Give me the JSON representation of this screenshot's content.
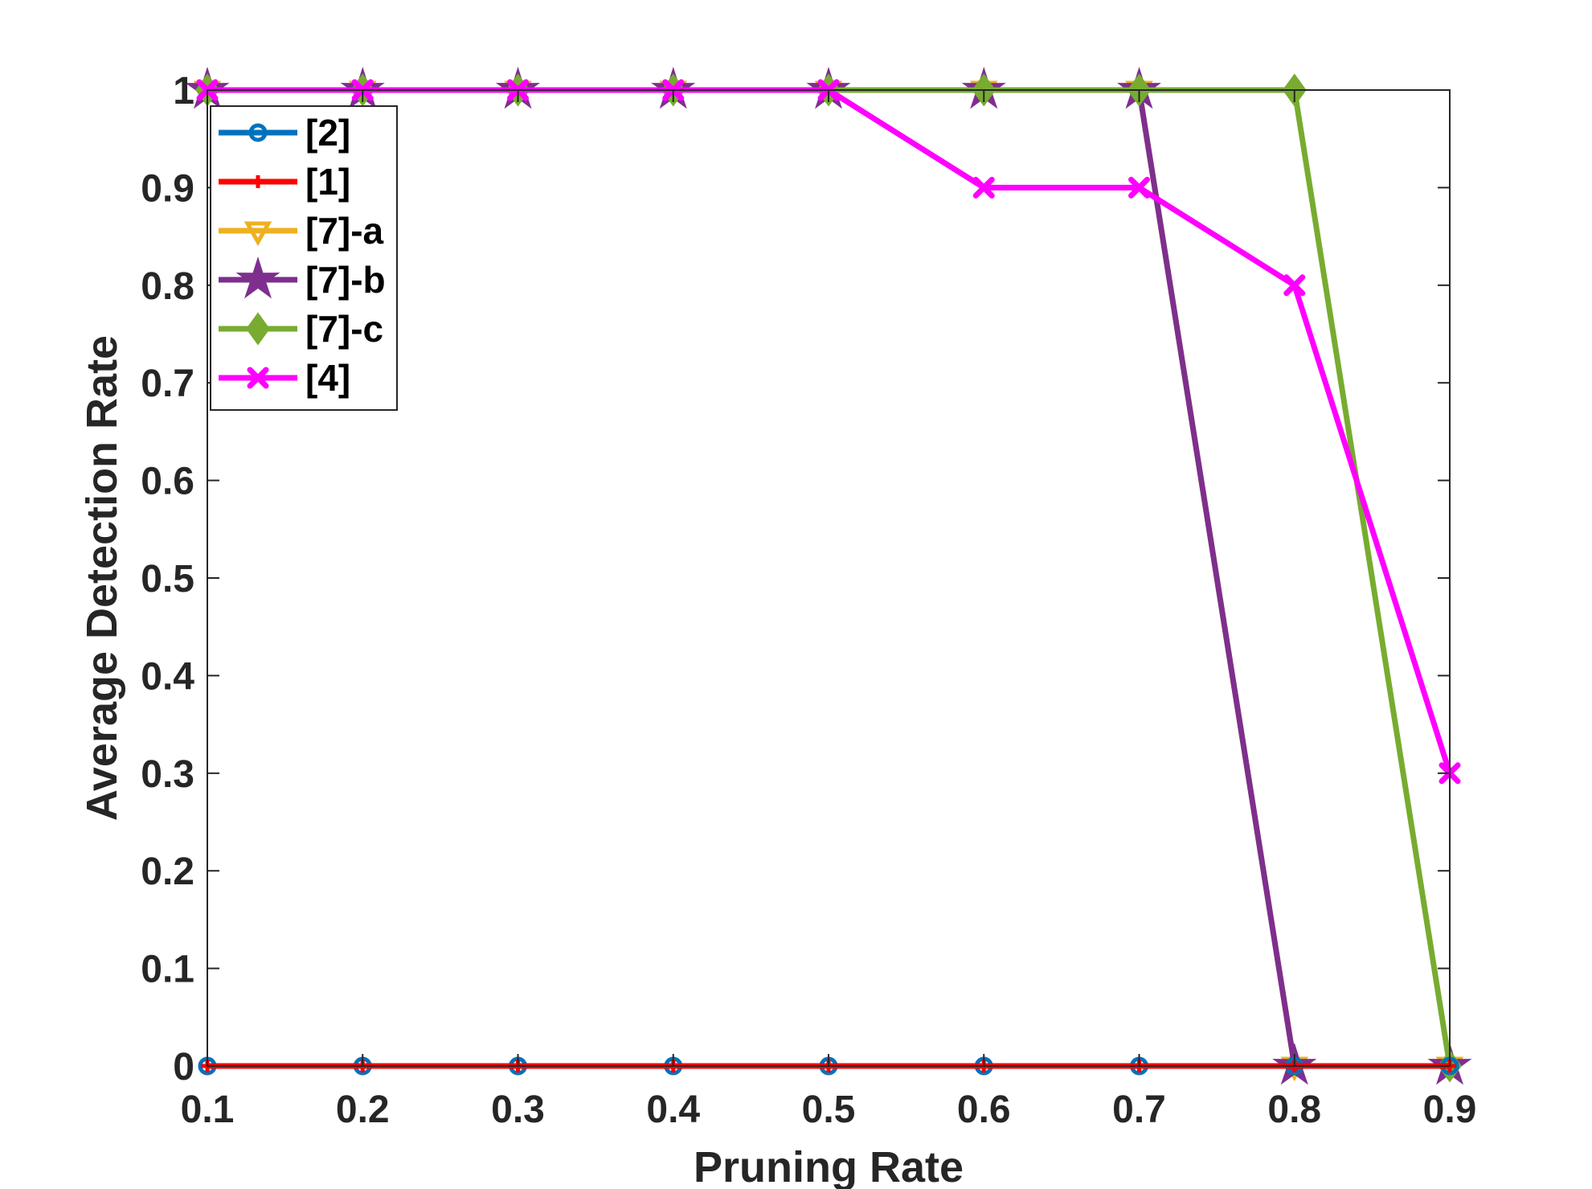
{
  "chart_data": {
    "type": "line",
    "xlabel": "Pruning Rate",
    "ylabel": "Average Detection Rate",
    "xlim": [
      0.1,
      0.9
    ],
    "ylim": [
      0,
      1
    ],
    "x_ticks": [
      "0.1",
      "0.2",
      "0.3",
      "0.4",
      "0.5",
      "0.6",
      "0.7",
      "0.8",
      "0.9"
    ],
    "y_ticks": [
      "0",
      "0.1",
      "0.2",
      "0.3",
      "0.4",
      "0.5",
      "0.6",
      "0.7",
      "0.8",
      "0.9",
      "1"
    ],
    "grid": false,
    "legend_position": "top-left",
    "x": [
      0.1,
      0.2,
      0.3,
      0.4,
      0.5,
      0.6,
      0.7,
      0.8,
      0.9
    ],
    "series": [
      {
        "name": "[2]",
        "color": "#0072BD",
        "marker": "circle",
        "values": [
          0,
          0,
          0,
          0,
          0,
          0,
          0,
          0,
          0
        ]
      },
      {
        "name": "[1]",
        "color": "#FF0000",
        "marker": "plus",
        "values": [
          0,
          0,
          0,
          0,
          0,
          0,
          0,
          0,
          0
        ]
      },
      {
        "name": "[7]-a",
        "color": "#EDB120",
        "marker": "triangle-down",
        "values": [
          1,
          1,
          1,
          1,
          1,
          1,
          1,
          0,
          0
        ]
      },
      {
        "name": "[7]-b",
        "color": "#7E2F8E",
        "marker": "star",
        "values": [
          1,
          1,
          1,
          1,
          1,
          1,
          1,
          0,
          0
        ]
      },
      {
        "name": "[7]-c",
        "color": "#77AC30",
        "marker": "diamond",
        "values": [
          1,
          1,
          1,
          1,
          1,
          1,
          1,
          1,
          0
        ]
      },
      {
        "name": "[4]",
        "color": "#FF00FF",
        "marker": "x",
        "values": [
          1,
          1,
          1,
          1,
          1,
          0.9,
          0.9,
          0.8,
          0.3
        ]
      }
    ],
    "draw_order": [
      2,
      3,
      4,
      0,
      1,
      5
    ]
  }
}
